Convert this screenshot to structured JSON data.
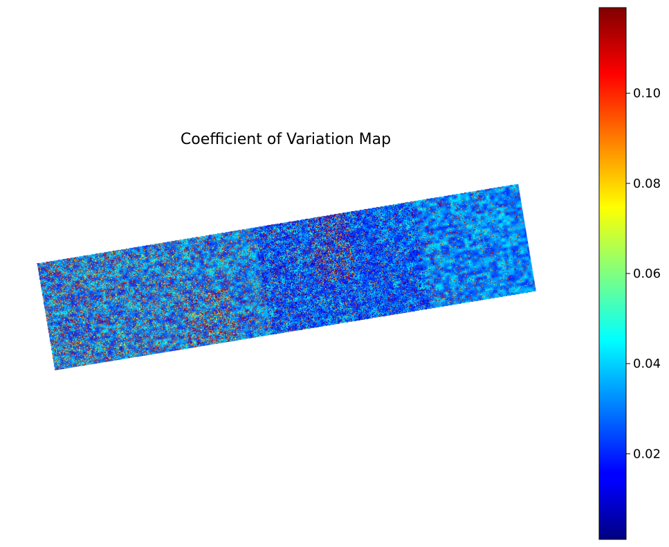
{
  "chart_data": {
    "type": "heatmap",
    "title": "Coefficient of Variation Map",
    "xlabel": "",
    "ylabel": "",
    "axes_visible": false,
    "grid": false,
    "colormap": "jet",
    "colorbar": {
      "location": "right",
      "range": [
        0.001,
        0.119
      ],
      "ticks": [
        0.02,
        0.04,
        0.06,
        0.08,
        0.1
      ],
      "tick_labels": [
        "0.02",
        "0.04",
        "0.06",
        "0.08",
        "0.10"
      ]
    },
    "colors": {
      "jet_low": "#000080",
      "jet_blue": "#0000ff",
      "jet_cyan": "#00ffff",
      "jet_yellow": "#ffff00",
      "jet_red": "#ff0000",
      "jet_high": "#800000",
      "background": "#ffffff"
    }
  }
}
